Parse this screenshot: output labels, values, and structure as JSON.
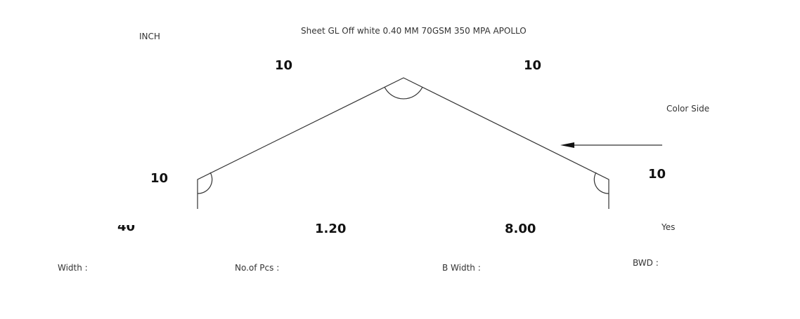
{
  "header": {
    "unit": "INCH",
    "material": "Sheet GL Off white 0.40 MM 70GSM 350 MPA APOLLO"
  },
  "dimensions": {
    "left_slope": "10",
    "right_slope": "10",
    "left_fold": "10",
    "right_fold": "10"
  },
  "color_side_label": "Color Side",
  "values": {
    "width": "40",
    "no_of_pcs": "1.20",
    "b_width": "8.00",
    "bwd": "Yes"
  },
  "labels": {
    "width": "Width :",
    "no_of_pcs": "No.of Pcs :",
    "b_width": "B Width :",
    "bwd": "BWD :"
  },
  "colors": {
    "line": "#333333",
    "text": "#222222"
  }
}
